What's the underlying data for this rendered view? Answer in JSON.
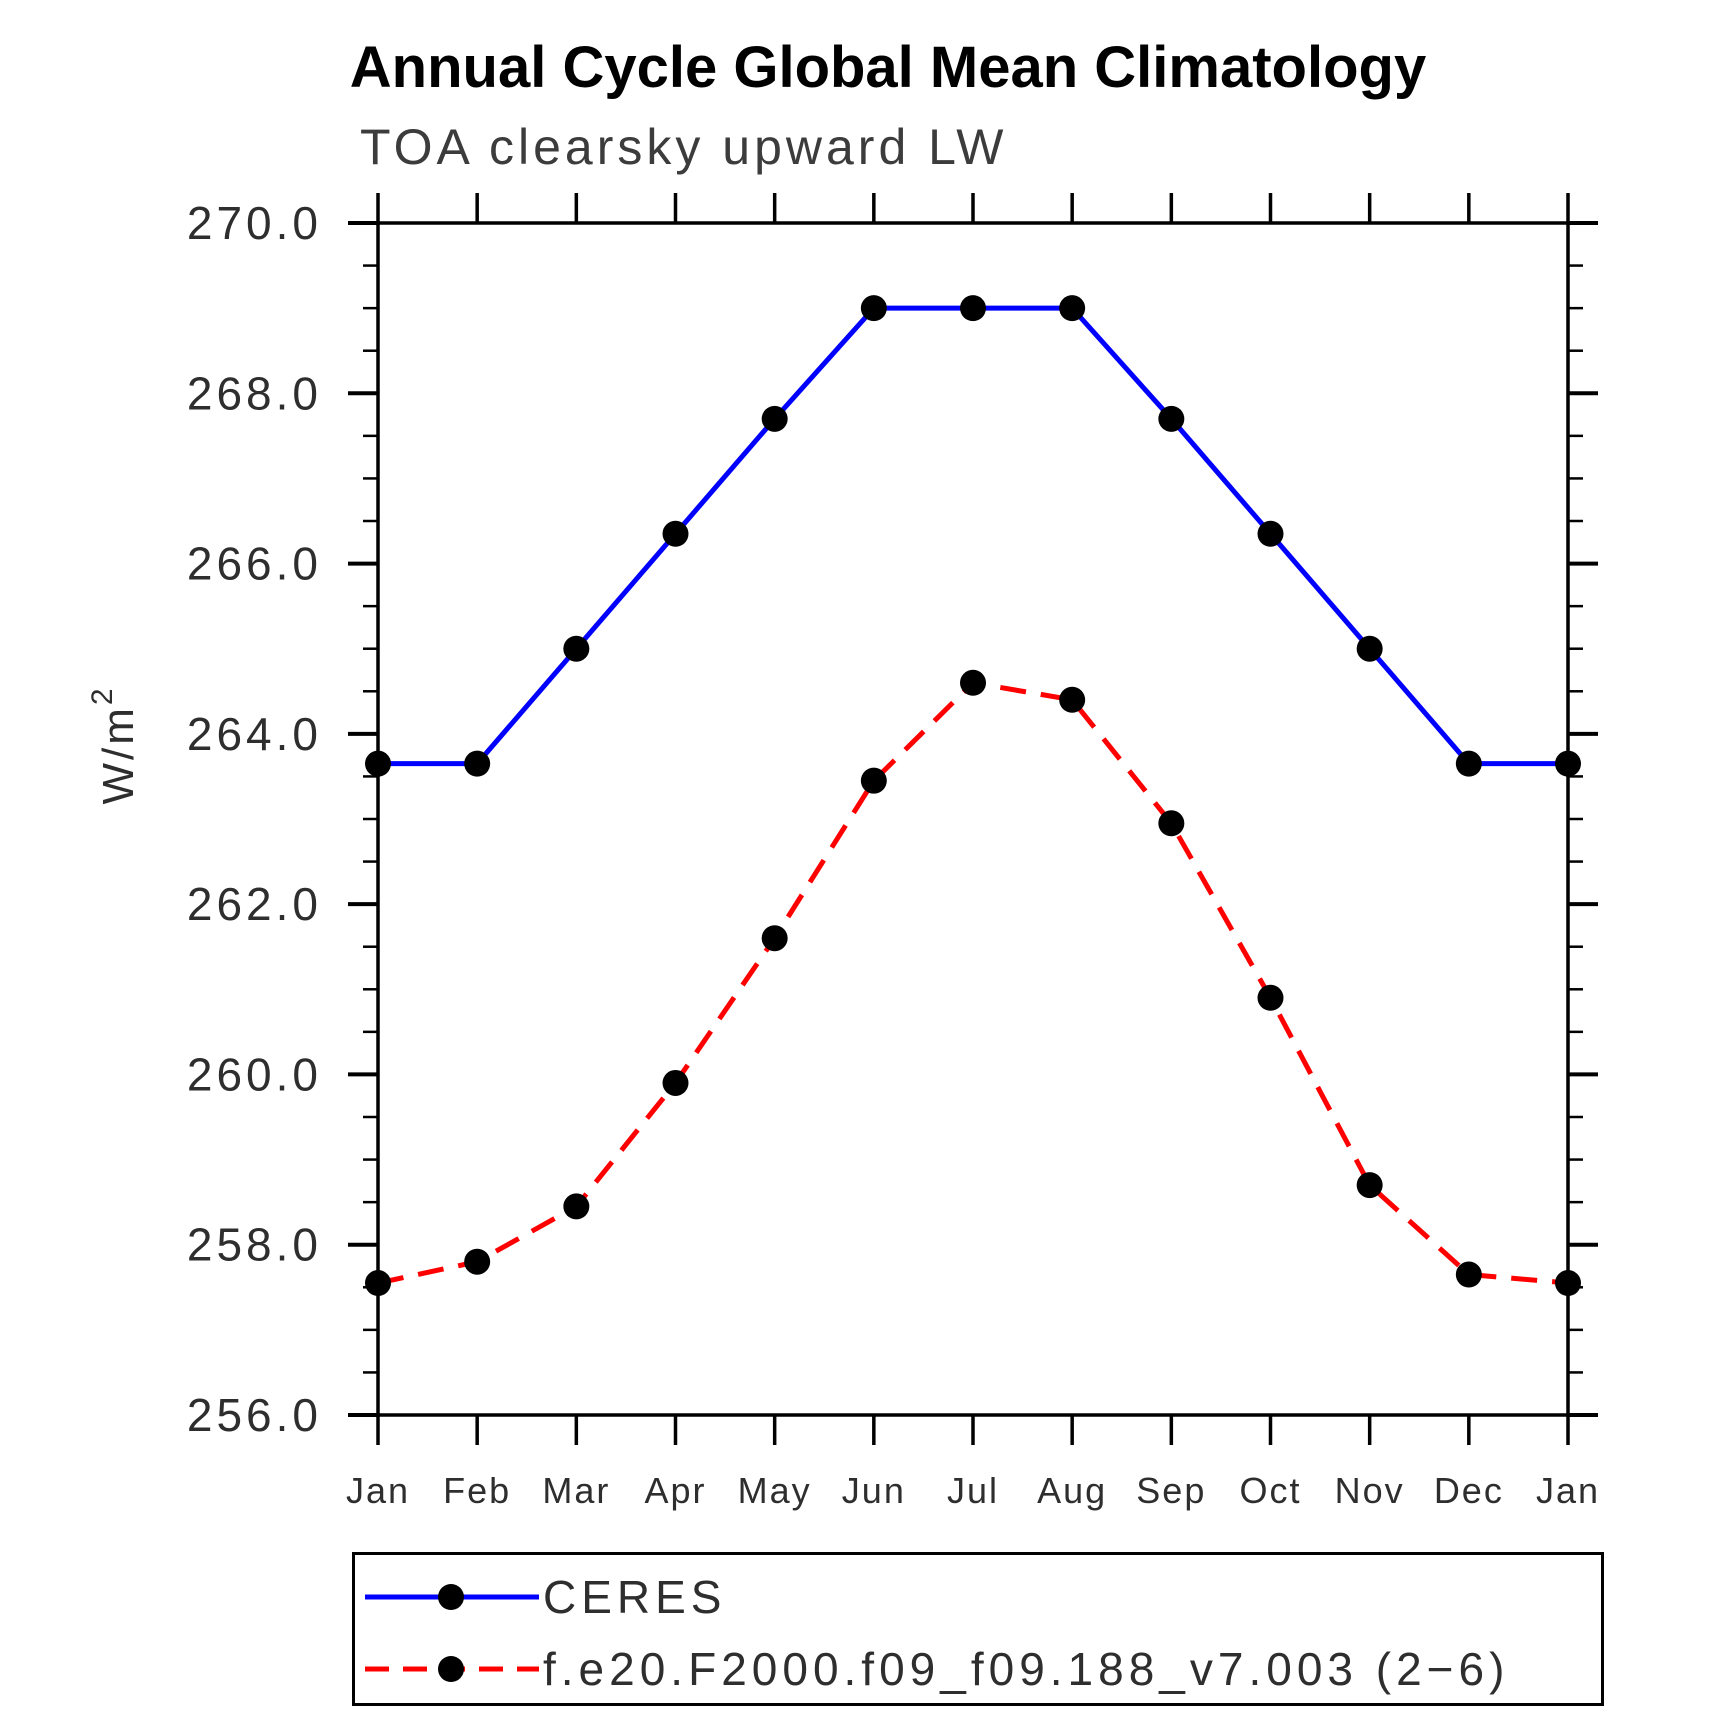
{
  "chart_data": {
    "type": "line",
    "title": "Annual Cycle Global Mean Climatology",
    "subtitle": "TOA clearsky upward LW",
    "ylabel": "W/m²",
    "ylabel_base": "W/m",
    "ylabel_exponent": "2",
    "categories": [
      "Jan",
      "Feb",
      "Mar",
      "Apr",
      "May",
      "Jun",
      "Jul",
      "Aug",
      "Sep",
      "Oct",
      "Nov",
      "Dec",
      "Jan"
    ],
    "ylim": [
      256.0,
      270.0
    ],
    "ytick_step": 2.0,
    "yminor_step": 0.5,
    "ytick_labels": [
      "256.0",
      "258.0",
      "260.0",
      "262.0",
      "264.0",
      "266.0",
      "268.0",
      "270.0"
    ],
    "grid": false,
    "frame_color": "#000000",
    "tick_label_color": "#2e2e2e",
    "legend_position": "bottom-left-box",
    "series": [
      {
        "name": "CERES",
        "color": "#0000ff",
        "style": "solid",
        "marker": "filled-circle",
        "marker_color": "#000000",
        "values": [
          263.65,
          263.65,
          265.0,
          266.35,
          267.7,
          269.0,
          269.0,
          269.0,
          267.7,
          266.35,
          265.0,
          263.65,
          263.65
        ]
      },
      {
        "name": "f.e20.F2000.f09_f09.188_v7.003 (2−6)",
        "color": "#ff0000",
        "style": "dashed",
        "marker": "filled-circle",
        "marker_color": "#000000",
        "values": [
          257.55,
          257.8,
          258.45,
          259.9,
          261.6,
          263.45,
          264.6,
          264.4,
          262.95,
          260.9,
          258.7,
          257.65,
          257.55
        ]
      }
    ]
  }
}
